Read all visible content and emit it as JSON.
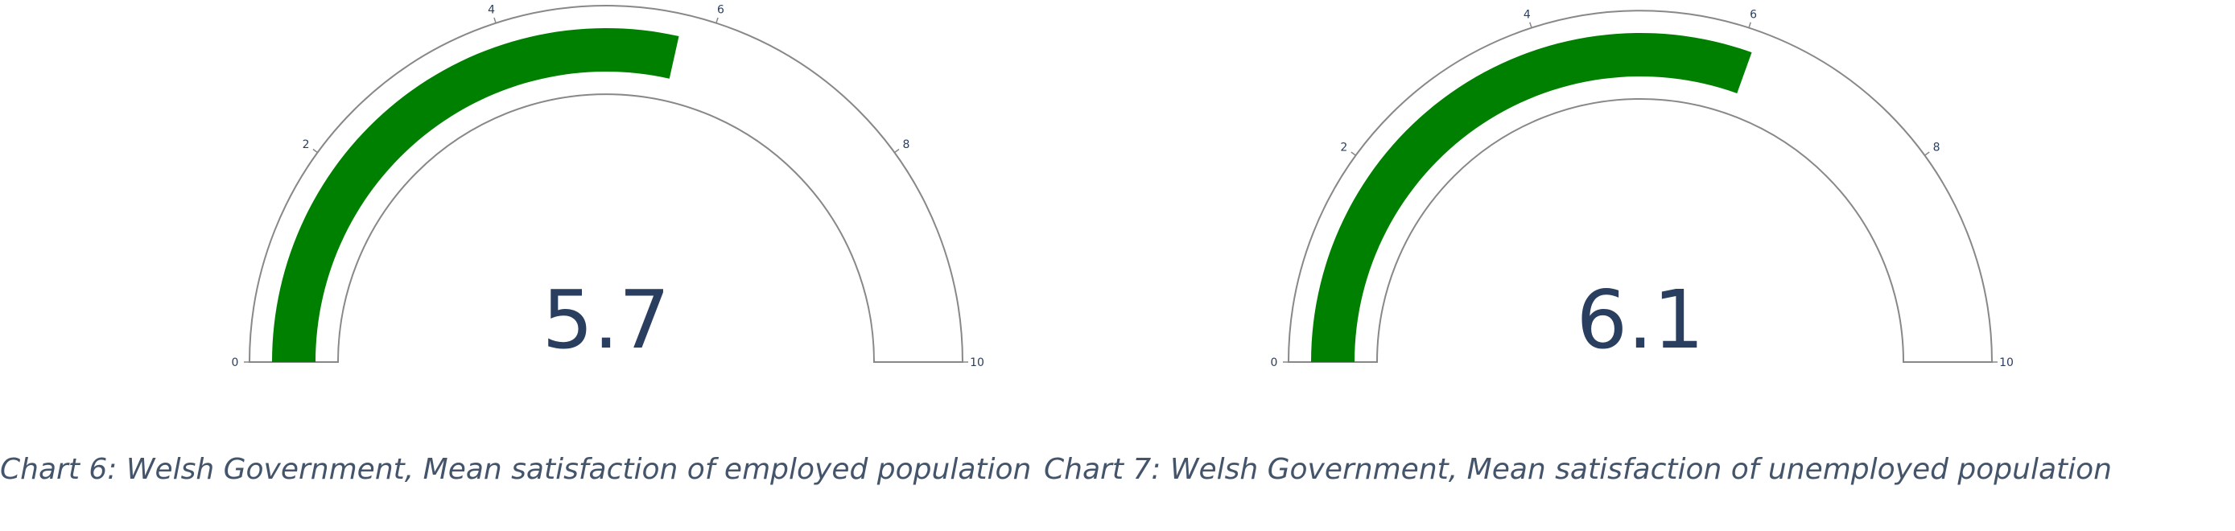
{
  "captions": {
    "chart6": "Chart 6: Welsh Government, Mean satisfaction of employed population",
    "chart7": "Chart 7: Welsh Government, Mean satisfaction of unemployed population"
  },
  "chart_data": [
    {
      "type": "gauge",
      "value": 5.7,
      "value_label": "5.7",
      "range": [
        0,
        10
      ],
      "tick_values": [
        0,
        2,
        4,
        6,
        8,
        10
      ],
      "tick_labels": [
        "0",
        "2",
        "4",
        "6",
        "8",
        "10"
      ],
      "bar_color": "#008000",
      "text_color": "#2a3f5f",
      "outline_color": "#888888"
    },
    {
      "type": "gauge",
      "value": 6.1,
      "value_label": "6.1",
      "range": [
        0,
        10
      ],
      "tick_values": [
        0,
        2,
        4,
        6,
        8,
        10
      ],
      "tick_labels": [
        "0",
        "2",
        "4",
        "6",
        "8",
        "10"
      ],
      "bar_color": "#008000",
      "text_color": "#2a3f5f",
      "outline_color": "#888888"
    }
  ]
}
